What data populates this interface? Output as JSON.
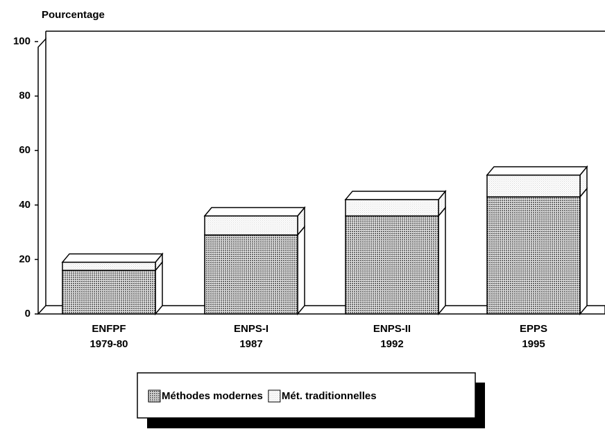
{
  "chart_data": {
    "type": "stacked-bar-3d",
    "y_axis_label": "Pourcentage",
    "categories": [
      [
        "ENFPF",
        "1979-80"
      ],
      [
        "ENPS-I",
        "1987"
      ],
      [
        "ENPS-II",
        "1992"
      ],
      [
        "EPPS",
        "1995"
      ]
    ],
    "series": [
      {
        "name": "Méthodes modernes",
        "color": "#6a6a6a",
        "values": [
          16,
          29,
          36,
          43
        ]
      },
      {
        "name": "Mét. traditionnelles",
        "color": "#d4d4d4",
        "values": [
          3,
          7,
          6,
          8
        ]
      }
    ],
    "ylim": [
      0,
      100
    ],
    "yticks": [
      0,
      20,
      40,
      60,
      80,
      100
    ],
    "legend": "bottom"
  }
}
